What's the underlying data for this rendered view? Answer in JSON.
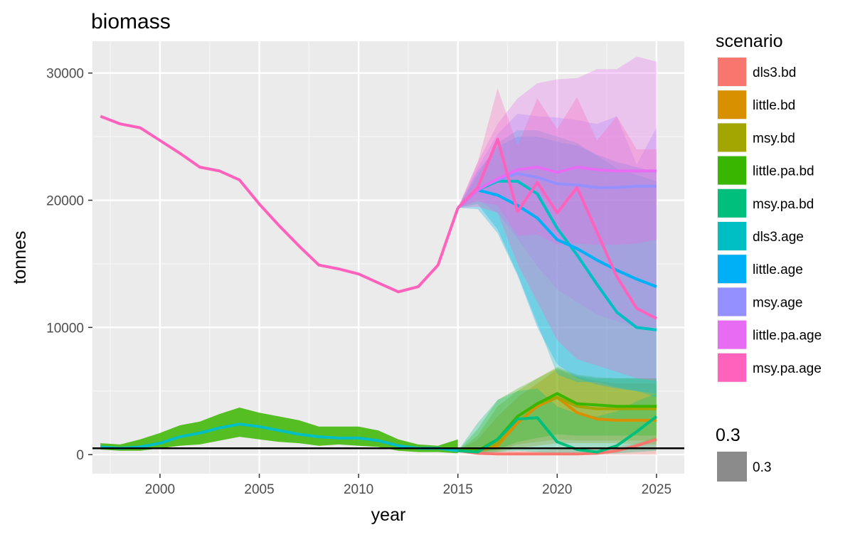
{
  "chart_data": {
    "type": "area",
    "title": "biomass",
    "xlabel": "year",
    "ylabel": "tonnes",
    "xlim": [
      1996.6,
      2026.4
    ],
    "ylim": [
      -1500,
      32500
    ],
    "x_ticks": [
      2000,
      2005,
      2010,
      2015,
      2020,
      2025
    ],
    "y_ticks": [
      0,
      10000,
      20000,
      30000
    ],
    "x_tick_labels": [
      "2000",
      "2005",
      "2010",
      "2015",
      "2020",
      "2025"
    ],
    "y_tick_labels": [
      "0",
      "10000",
      "20000",
      "30000"
    ],
    "grid": true,
    "reference_line": 500,
    "legend": {
      "title": "scenario",
      "placement": "right",
      "second_title": "0.3",
      "second_label": "0.3"
    },
    "bd_history": {
      "x": [
        1997,
        1998,
        1999,
        2000,
        2001,
        2002,
        2003,
        2004,
        2005,
        2006,
        2007,
        2008,
        2009,
        2010,
        2011,
        2012,
        2013,
        2014,
        2015
      ],
      "median": [
        600,
        500,
        600,
        900,
        1400,
        1700,
        2100,
        2400,
        2200,
        1900,
        1600,
        1400,
        1300,
        1300,
        1100,
        700,
        500,
        500,
        300
      ],
      "lower": [
        400,
        300,
        300,
        500,
        700,
        800,
        1100,
        1400,
        1200,
        1000,
        900,
        700,
        800,
        700,
        600,
        300,
        200,
        200,
        100
      ],
      "upper": [
        900,
        800,
        1200,
        1700,
        2300,
        2600,
        3200,
        3700,
        3300,
        3000,
        2700,
        2200,
        2200,
        2200,
        1900,
        1200,
        800,
        700,
        1200
      ]
    },
    "age_history": {
      "x": [
        1997,
        1998,
        1999,
        2000,
        2001,
        2002,
        2003,
        2004,
        2005,
        2006,
        2007,
        2008,
        2009,
        2010,
        2011,
        2012,
        2013,
        2014,
        2015
      ],
      "values": [
        26600,
        26000,
        25700,
        24700,
        23700,
        22600,
        22300,
        21600,
        19700,
        18000,
        16400,
        14900,
        14600,
        14200,
        13500,
        12800,
        13200,
        14900,
        19400
      ]
    },
    "projection_x": [
      2015,
      2016,
      2017,
      2018,
      2019,
      2020,
      2021,
      2022,
      2023,
      2024,
      2025
    ],
    "series": [
      {
        "name": "dls3.bd",
        "color": "#F8766D",
        "values": [
          300,
          100,
          50,
          50,
          50,
          50,
          50,
          100,
          300,
          700,
          1200
        ],
        "lower": [
          300,
          0,
          0,
          0,
          0,
          0,
          0,
          0,
          0,
          0,
          0
        ],
        "upper": [
          300,
          300,
          300,
          300,
          300,
          400,
          400,
          500,
          600,
          900,
          1400
        ]
      },
      {
        "name": "little.bd",
        "color": "#D89000",
        "values": [
          300,
          300,
          700,
          2500,
          3800,
          4500,
          3300,
          2800,
          2700,
          2700,
          2700
        ],
        "lower": [
          300,
          200,
          200,
          500,
          700,
          900,
          900,
          900,
          900,
          800,
          800
        ],
        "upper": [
          300,
          1200,
          3000,
          4500,
          5600,
          6700,
          6100,
          5800,
          5600,
          5600,
          5600
        ]
      },
      {
        "name": "msy.bd",
        "color": "#A3A500",
        "values": [
          300,
          300,
          900,
          3000,
          4000,
          4500,
          3800,
          3600,
          3600,
          3600,
          3600
        ],
        "lower": [
          300,
          200,
          300,
          800,
          1000,
          1200,
          1100,
          1100,
          1100,
          1100,
          1100
        ],
        "upper": [
          300,
          1500,
          3800,
          5000,
          6000,
          6900,
          6300,
          6100,
          6000,
          6000,
          6000
        ]
      },
      {
        "name": "little.pa.bd",
        "color": "#39B600",
        "values": [
          300,
          300,
          1200,
          3000,
          4000,
          4800,
          4000,
          3900,
          3800,
          3800,
          3800
        ],
        "lower": [
          300,
          200,
          400,
          1000,
          1300,
          1600,
          1500,
          1500,
          1500,
          1500,
          1500
        ],
        "upper": [
          300,
          2000,
          4300,
          5200,
          6000,
          6800,
          6200,
          6000,
          6000,
          6000,
          6000
        ]
      },
      {
        "name": "msy.pa.bd",
        "color": "#00BF7D",
        "values": [
          300,
          200,
          1200,
          2800,
          2900,
          1000,
          400,
          200,
          700,
          1800,
          3000
        ],
        "lower": [
          300,
          100,
          200,
          300,
          200,
          100,
          50,
          50,
          100,
          200,
          300
        ],
        "upper": [
          300,
          2500,
          4300,
          5000,
          5200,
          3800,
          3200,
          3000,
          3400,
          4200,
          4800
        ]
      },
      {
        "name": "dls3.age",
        "color": "#00BFC4",
        "values": [
          19400,
          20800,
          21500,
          21500,
          20500,
          17800,
          15700,
          13400,
          11200,
          10000,
          9800
        ],
        "lower": [
          19400,
          19700,
          17700,
          14200,
          10300,
          6300,
          5700,
          5700,
          5300,
          5000,
          4500
        ],
        "upper": [
          19400,
          22000,
          24500,
          25500,
          25500,
          25000,
          24500,
          23500,
          22500,
          22000,
          21500
        ]
      },
      {
        "name": "little.age",
        "color": "#00B0F6",
        "values": [
          19400,
          20800,
          20400,
          19600,
          18600,
          16900,
          16200,
          15300,
          14500,
          13800,
          13200
        ],
        "lower": [
          19400,
          19300,
          17400,
          14100,
          10000,
          7100,
          6000,
          5500,
          5200,
          5000,
          4800
        ],
        "upper": [
          19400,
          22300,
          24200,
          25000,
          25000,
          24600,
          24300,
          23600,
          23000,
          22600,
          22200
        ]
      },
      {
        "name": "msy.age",
        "color": "#9590FF",
        "values": [
          19400,
          20900,
          21600,
          22100,
          21800,
          21300,
          21200,
          21000,
          21000,
          21100,
          21100
        ],
        "lower": [
          19400,
          20000,
          19000,
          17000,
          14800,
          13000,
          12000,
          11000,
          10500,
          10000,
          10000
        ],
        "upper": [
          19400,
          22600,
          25200,
          26800,
          26600,
          26500,
          26300,
          26000,
          26600,
          22800,
          25700
        ]
      },
      {
        "name": "little.pa.age",
        "color": "#E76BF3",
        "values": [
          19400,
          20800,
          21700,
          22400,
          22600,
          22200,
          22600,
          22400,
          22300,
          22300,
          22300
        ],
        "lower": [
          19400,
          19900,
          19600,
          17200,
          17300,
          16500,
          16600,
          16500,
          16500,
          16600,
          16900
        ],
        "upper": [
          19400,
          23000,
          26000,
          28000,
          29200,
          29500,
          29600,
          30300,
          30300,
          31300,
          30900
        ]
      },
      {
        "name": "msy.pa.age",
        "color": "#FF62BC",
        "values": [
          19400,
          21000,
          24800,
          19100,
          21400,
          19000,
          21000,
          17500,
          14000,
          11500,
          10700
        ],
        "lower": [
          19400,
          19500,
          19000,
          15000,
          12000,
          9000,
          7500,
          7000,
          6500,
          6000,
          5800
        ],
        "upper": [
          19400,
          23000,
          28800,
          24300,
          28000,
          25600,
          28100,
          24700,
          26600,
          24000,
          24000
        ]
      }
    ]
  }
}
